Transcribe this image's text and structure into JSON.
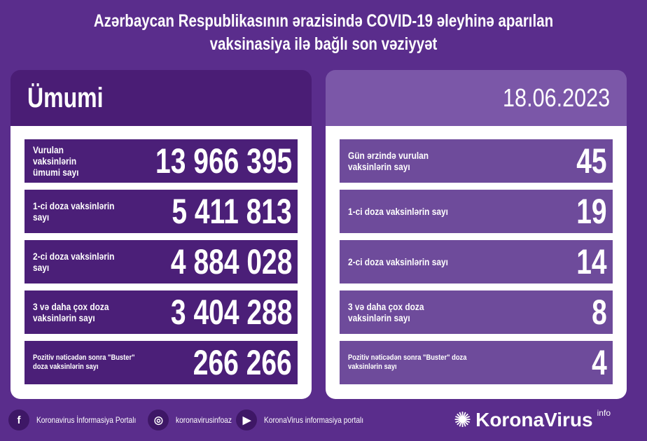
{
  "title": {
    "line1": "Azərbaycan Respublikasının ərazisində COVID-19 əleyhinə aparılan",
    "line2": "vaksinasiya ilə bağlı son vəziyyət"
  },
  "left": {
    "heading": "Ümumi",
    "rows": [
      {
        "label": "Vurulan vaksinlərin ümumi sayı",
        "value": "13 966 395"
      },
      {
        "label": "1-ci doza vaksinlərin sayı",
        "value": "5 411 813"
      },
      {
        "label": "2-ci doza vaksinlərin sayı",
        "value": "4 884 028"
      },
      {
        "label": "3 və daha çox doza vaksinlərin sayı",
        "value": "3 404 288"
      },
      {
        "label": "Pozitiv nəticədən sonra \"Buster\" doza vaksinlərin sayı",
        "value": "266 266"
      }
    ]
  },
  "right": {
    "date": "18.06.2023",
    "rows": [
      {
        "label": "Gün ərzində vurulan vaksinlərin sayı",
        "value": "45"
      },
      {
        "label": "1-ci doza vaksinlərin sayı",
        "value": "19"
      },
      {
        "label": "2-ci doza vaksinlərin sayı",
        "value": "14"
      },
      {
        "label": "3 və daha çox doza vaksinlərin sayı",
        "value": "8"
      },
      {
        "label": "Pozitiv nəticədən sonra \"Buster\" doza vaksinlərin sayı",
        "value": "4"
      }
    ]
  },
  "footer": {
    "facebook": "Koronavirus İnformasiya Portalı",
    "instagram": "koronavirusinfoaz",
    "youtube": "KoronaVirus informasiya portalı",
    "brand": "KoronaVirus",
    "brand_sup": "info"
  },
  "colors": {
    "background": "#5a2d8c",
    "left_row": "#4b1f78",
    "right_row": "#6e4b9b"
  }
}
